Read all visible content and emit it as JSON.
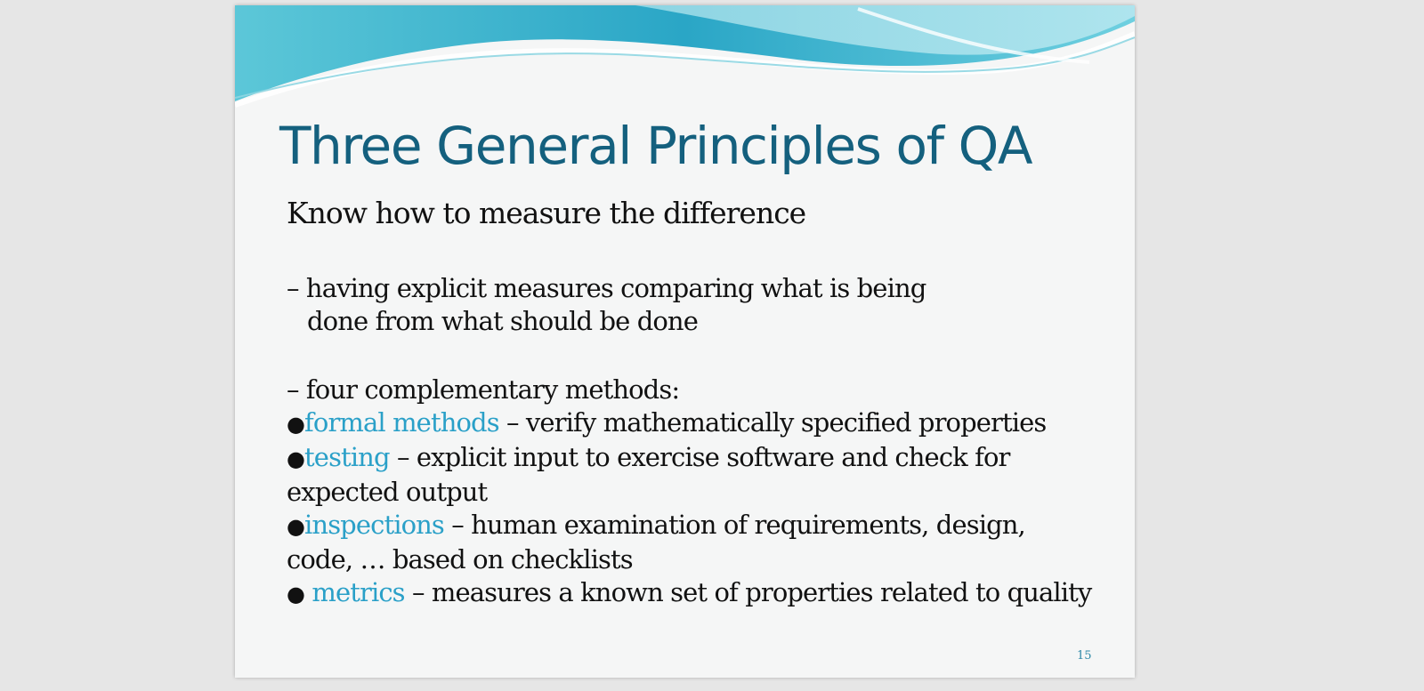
{
  "slide": {
    "title": "Three General Principles of QA",
    "subheading": "Know how to measure the difference",
    "para1_line1": "– having explicit measures comparing what is being",
    "para1_line2": "done from what should be done",
    "para2_intro": "– four complementary methods:",
    "bullet_glyph": "●",
    "bullets": [
      {
        "term": "formal methods",
        "text": " – verify mathematically specified properties",
        "cont": ""
      },
      {
        "term": "testing",
        "text": " – explicit input to exercise software and check for",
        "cont": "expected output"
      },
      {
        "term": "inspections",
        "text": " – human examination of requirements, design,",
        "cont": "code, … based on checklists"
      },
      {
        "term": "metrics",
        "text": " – measures a known set of properties related to quality",
        "cont": ""
      }
    ],
    "page_number": "15"
  },
  "colors": {
    "title": "#14607e",
    "highlight": "#2aa0c8",
    "body_text": "#111111",
    "slide_bg": "#f5f6f6",
    "viewer_bg": "#e6e6e6"
  }
}
